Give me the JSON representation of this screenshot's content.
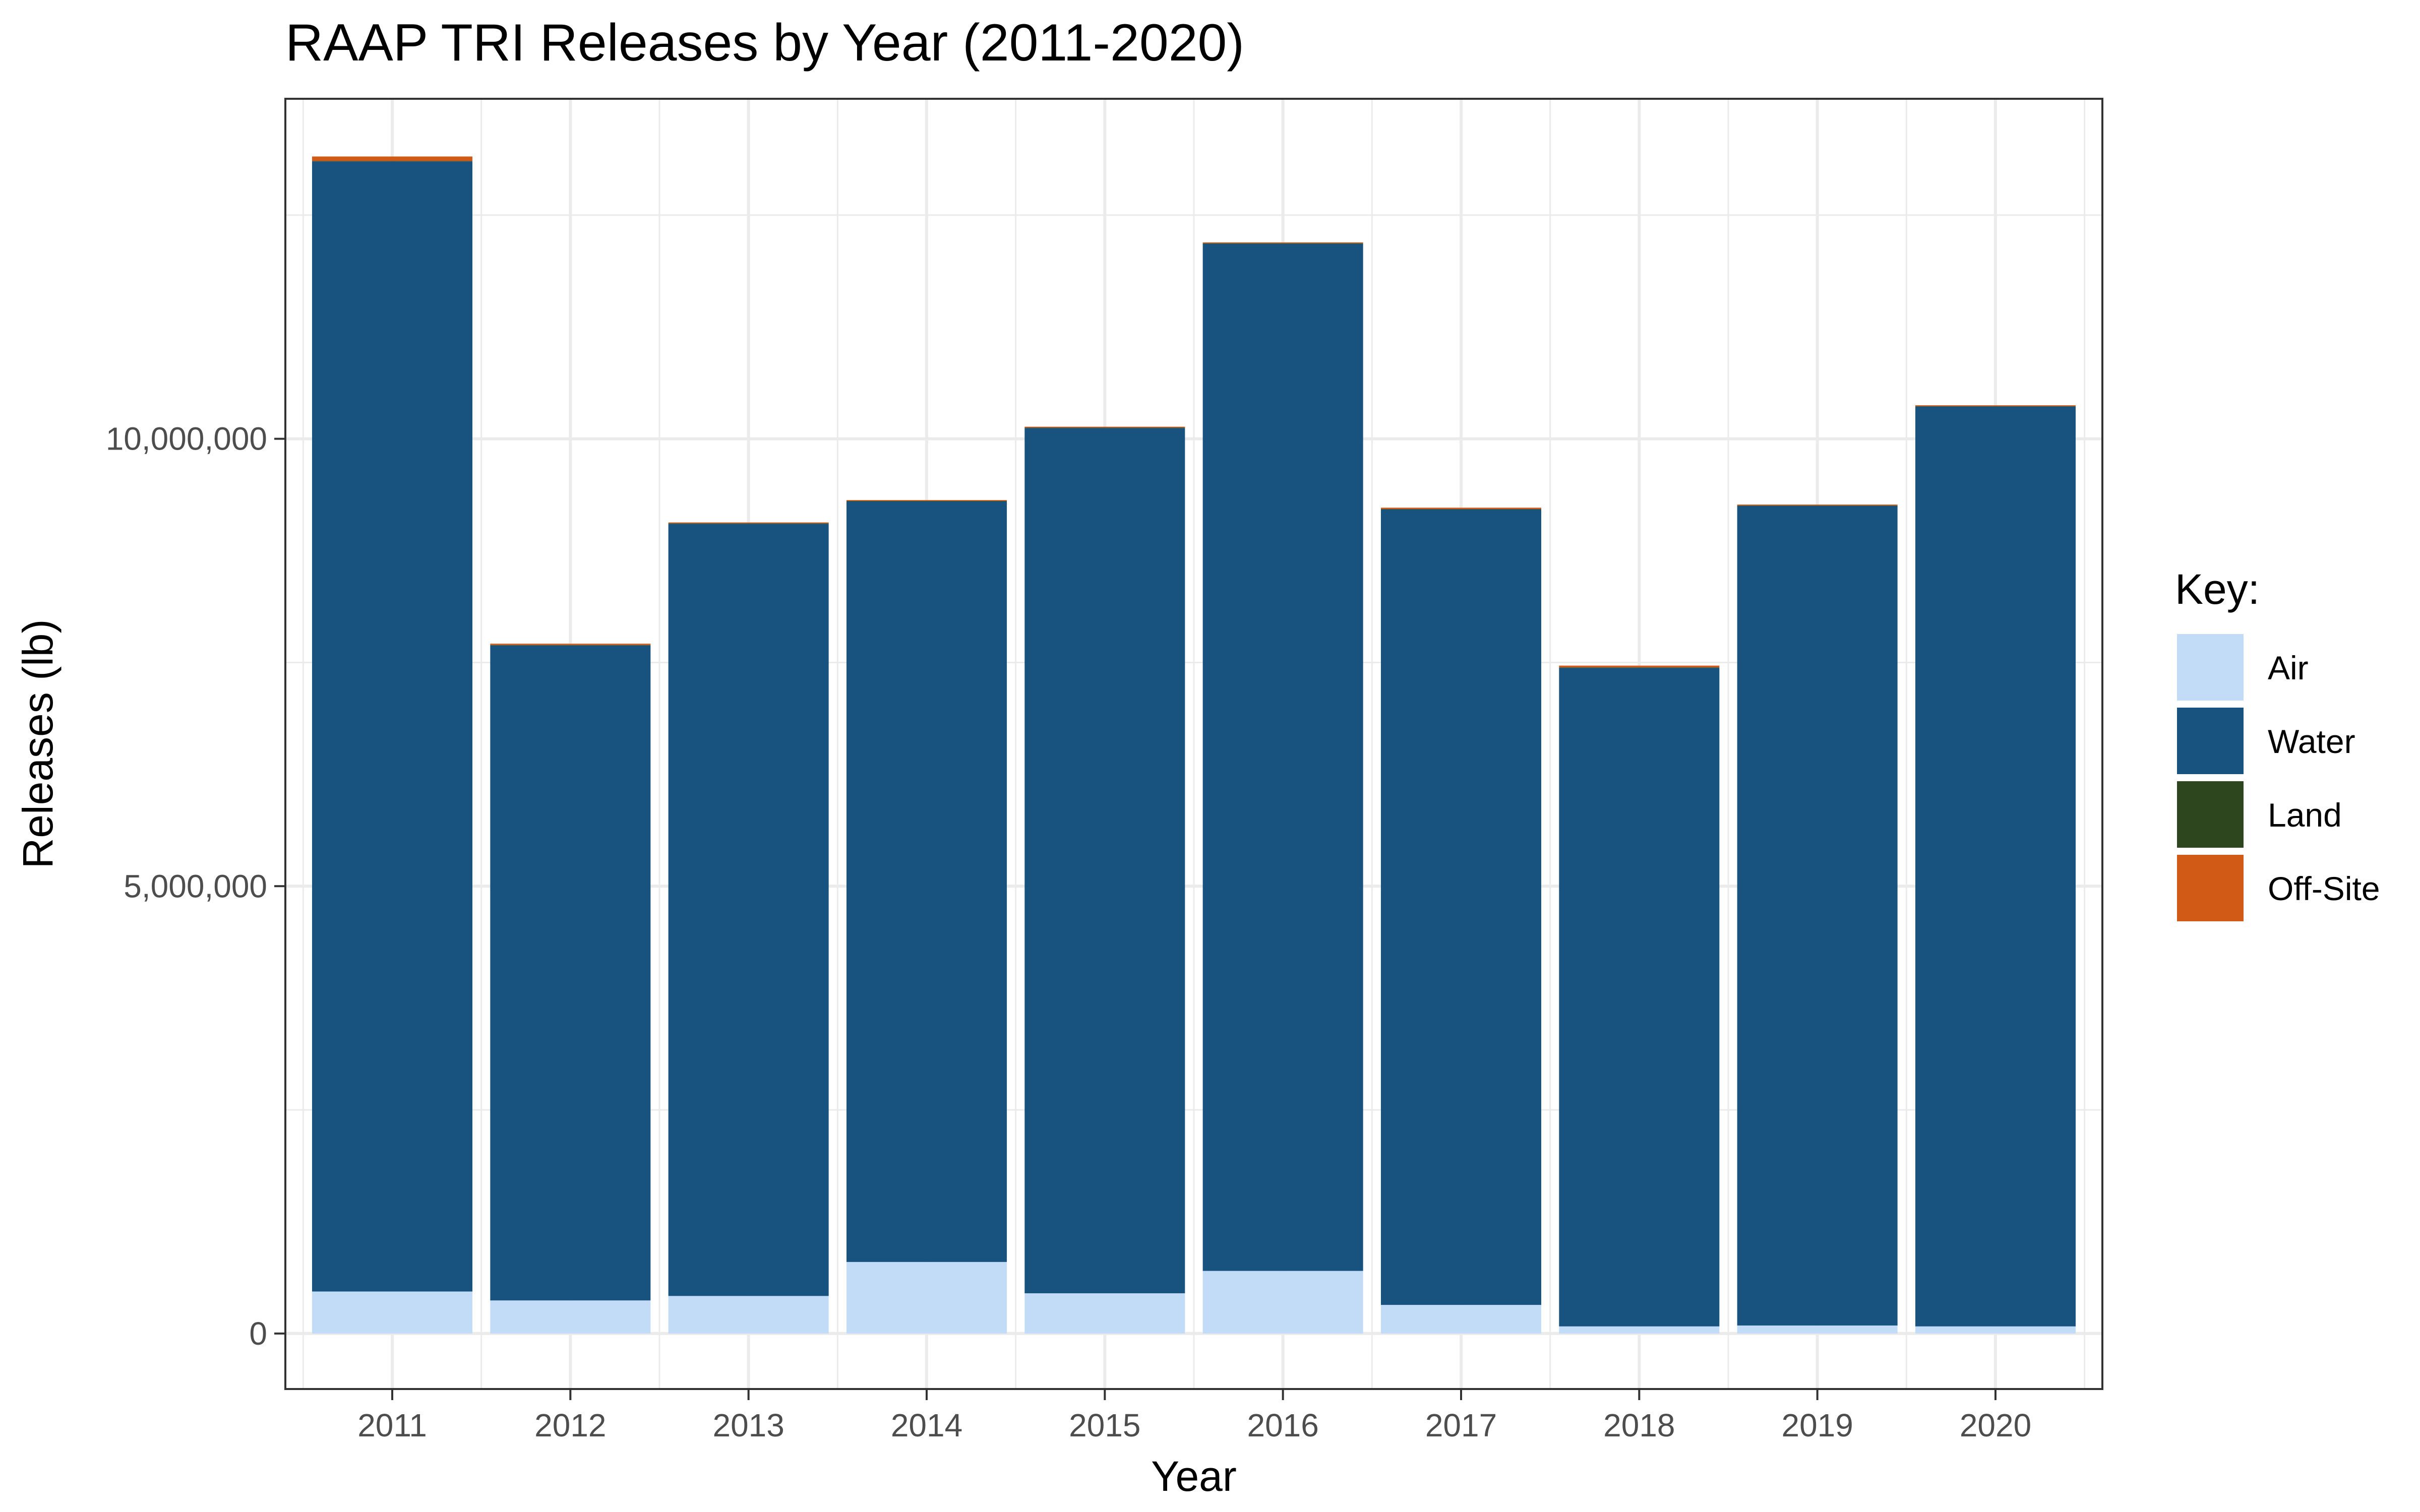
{
  "chart_data": {
    "type": "bar",
    "stacked": true,
    "title": "RAAP TRI Releases by Year (2011-2020)",
    "xlabel": "Year",
    "ylabel": "Releases (lb)",
    "ylim": [
      -620000,
      13800000
    ],
    "yticks": [
      0,
      5000000,
      10000000
    ],
    "ytick_labels": [
      "0",
      "5,000,000",
      "10,000,000"
    ],
    "grid": true,
    "legend_title": "Key:",
    "legend_position": "right",
    "categories": [
      "2011",
      "2012",
      "2013",
      "2014",
      "2015",
      "2016",
      "2017",
      "2018",
      "2019",
      "2020"
    ],
    "series": [
      {
        "name": "Air",
        "color": "#c2dcf8",
        "values": [
          470000,
          370000,
          420000,
          800000,
          450000,
          700000,
          320000,
          80000,
          90000,
          80000
        ]
      },
      {
        "name": "Water",
        "color": "#18527e",
        "values": [
          12630000,
          7320000,
          8630000,
          8500000,
          9670000,
          11480000,
          8890000,
          7360000,
          9160000,
          10280000
        ]
      },
      {
        "name": "Land",
        "color": "#2e461d",
        "values": [
          5000,
          5000,
          5000,
          5000,
          5000,
          5000,
          5000,
          5000,
          5000,
          5000
        ]
      },
      {
        "name": "Off-Site",
        "color": "#d15a17",
        "values": [
          50000,
          15000,
          10000,
          10000,
          10000,
          10000,
          15000,
          20000,
          10000,
          10000
        ]
      }
    ]
  }
}
